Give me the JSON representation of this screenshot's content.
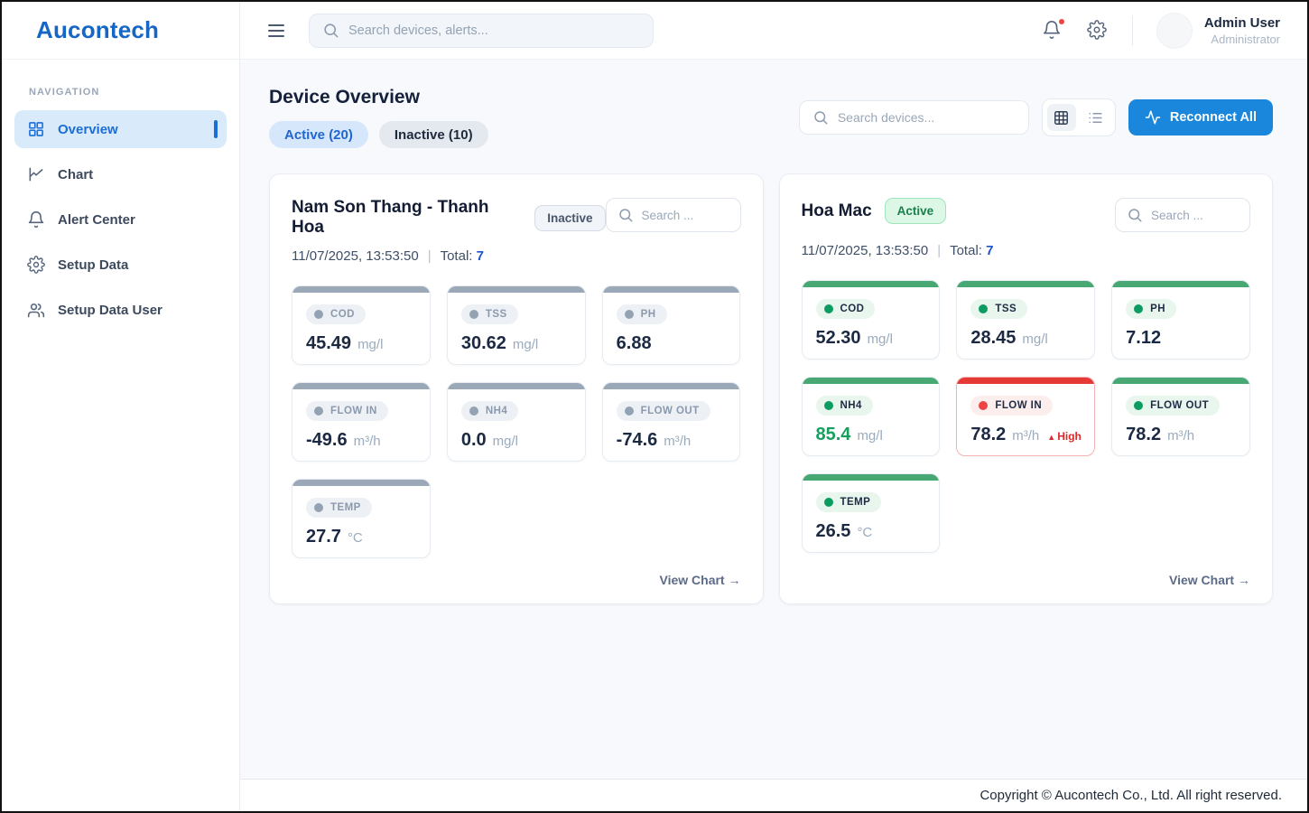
{
  "brand": {
    "logo_text": "Aucontech"
  },
  "topbar": {
    "search_placeholder": "Search devices, alerts...",
    "user_name": "Admin User",
    "user_role": "Administrator"
  },
  "sidebar": {
    "section_label": "NAVIGATION",
    "items": [
      {
        "label": "Overview",
        "icon": "dashboard-icon",
        "active": true
      },
      {
        "label": "Chart",
        "icon": "chart-icon",
        "active": false
      },
      {
        "label": "Alert Center",
        "icon": "bell-icon",
        "active": false
      },
      {
        "label": "Setup Data",
        "icon": "gear-icon",
        "active": false
      },
      {
        "label": "Setup Data User",
        "icon": "users-icon",
        "active": false
      }
    ]
  },
  "page": {
    "title": "Device Overview",
    "filter_tabs": [
      {
        "label": "Active (20)",
        "active": true
      },
      {
        "label": "Inactive (10)",
        "active": false
      }
    ],
    "toolbar": {
      "search_placeholder": "Search devices...",
      "reconnect_label": "Reconnect All"
    }
  },
  "devices": [
    {
      "name": "Nam Son Thang - Thanh Hoa",
      "status": "Inactive",
      "status_state": "inactive",
      "timestamp": "11/07/2025, 13:53:50",
      "total_label": "Total:",
      "total_value": "7",
      "search_placeholder": "Search ...",
      "view_chart_label": "View Chart →",
      "metrics": [
        {
          "label": "COD",
          "value": "45.49",
          "unit": "mg/l",
          "state": "inactive"
        },
        {
          "label": "TSS",
          "value": "30.62",
          "unit": "mg/l",
          "state": "inactive"
        },
        {
          "label": "PH",
          "value": "6.88",
          "unit": "",
          "state": "inactive"
        },
        {
          "label": "FLOW IN",
          "value": "-49.6",
          "unit": "m³/h",
          "state": "inactive"
        },
        {
          "label": "NH4",
          "value": "0.0",
          "unit": "mg/l",
          "state": "inactive"
        },
        {
          "label": "FLOW OUT",
          "value": "-74.6",
          "unit": "m³/h",
          "state": "inactive"
        },
        {
          "label": "TEMP",
          "value": "27.7",
          "unit": "°C",
          "state": "inactive"
        }
      ]
    },
    {
      "name": "Hoa Mac",
      "status": "Active",
      "status_state": "active",
      "timestamp": "11/07/2025, 13:53:50",
      "total_label": "Total:",
      "total_value": "7",
      "search_placeholder": "Search ...",
      "view_chart_label": "View Chart →",
      "metrics": [
        {
          "label": "COD",
          "value": "52.30",
          "unit": "mg/l",
          "state": "active"
        },
        {
          "label": "TSS",
          "value": "28.45",
          "unit": "mg/l",
          "state": "active"
        },
        {
          "label": "PH",
          "value": "7.12",
          "unit": "",
          "state": "active"
        },
        {
          "label": "NH4",
          "value": "85.4",
          "unit": "mg/l",
          "state": "active",
          "value_highlight": "green"
        },
        {
          "label": "FLOW IN",
          "value": "78.2",
          "unit": "m³/h",
          "state": "alert",
          "alert_label": "High"
        },
        {
          "label": "FLOW OUT",
          "value": "78.2",
          "unit": "m³/h",
          "state": "active"
        },
        {
          "label": "TEMP",
          "value": "26.5",
          "unit": "°C",
          "state": "active"
        }
      ]
    }
  ],
  "footer": {
    "copyright": "Copyright © Aucontech Co., Ltd. All right reserved."
  },
  "colors": {
    "brand_blue": "#1667c5",
    "accent_blue": "#1b87dc",
    "active_green": "#47a873",
    "alert_red": "#e53935",
    "inactive_gray": "#9aa8b8",
    "highlight_value_green": "#16a05d"
  }
}
